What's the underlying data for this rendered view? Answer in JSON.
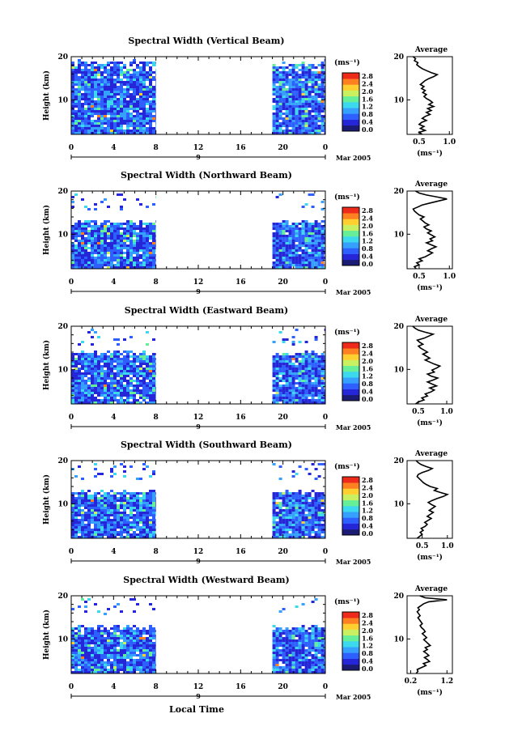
{
  "figure": {
    "xlabel": "Local Time",
    "date_label": "Mar 2005",
    "day_marker": "9",
    "height_label": "Height (km)",
    "colorbar_unit": "(ms⁻¹)",
    "average_title": "Average",
    "average_unit": "(ms⁻¹)"
  },
  "colors": {
    "colormap": [
      "#1b1b73",
      "#2626d9",
      "#2e5fff",
      "#36a0ff",
      "#3bd8ee",
      "#66ee99",
      "#c8f060",
      "#ffd030",
      "#ff8020",
      "#ee2a1a"
    ]
  },
  "chart_data": [
    {
      "type": "heatmap",
      "title": "Spectral Width (Vertical Beam)",
      "x_ticks": [
        "0",
        "4",
        "8",
        "12",
        "16",
        "20",
        "0"
      ],
      "y_ticks": [
        "20",
        "10"
      ],
      "colorbar_ticks": [
        "2.8",
        "2.4",
        "2.0",
        "1.6",
        "1.2",
        "0.8",
        "0.4",
        "0.0"
      ],
      "average": {
        "x_ticks": [
          "0.5",
          "1.0"
        ],
        "xlim": [
          0.3,
          1.05
        ],
        "y_ticks": [
          "20",
          "10"
        ],
        "ylim": [
          2,
          20
        ],
        "profile": [
          0.55,
          0.5,
          0.6,
          0.52,
          0.58,
          0.5,
          0.54,
          0.62,
          0.55,
          0.6,
          0.68,
          0.62,
          0.7,
          0.64,
          0.74,
          0.66,
          0.72,
          0.68,
          0.62,
          0.58,
          0.62,
          0.56,
          0.6,
          0.54,
          0.58,
          0.52,
          0.56,
          0.6,
          0.66,
          0.74,
          0.8,
          0.7,
          0.62,
          0.55,
          0.5,
          0.46,
          0.48,
          0.42,
          0.44,
          0.4
        ]
      },
      "data_extent": {
        "segments": [
          [
            0,
            8
          ],
          [
            19,
            24
          ]
        ],
        "max_height": 19
      }
    },
    {
      "type": "heatmap",
      "title": "Spectral Width (Northward Beam)",
      "x_ticks": [
        "0",
        "4",
        "8",
        "12",
        "16",
        "20",
        "0"
      ],
      "y_ticks": [
        "20",
        "10"
      ],
      "colorbar_ticks": [
        "2.8",
        "2.4",
        "2.0",
        "1.6",
        "1.2",
        "0.8",
        "0.4",
        "0.0"
      ],
      "average": {
        "x_ticks": [
          "0.5",
          "1.0"
        ],
        "xlim": [
          0.3,
          1.05
        ],
        "y_ticks": [
          "20",
          "10"
        ],
        "ylim": [
          2,
          20
        ],
        "profile": [
          0.45,
          0.42,
          0.5,
          0.46,
          0.55,
          0.5,
          0.6,
          0.66,
          0.72,
          0.64,
          0.7,
          0.78,
          0.7,
          0.62,
          0.72,
          0.68,
          0.76,
          0.7,
          0.64,
          0.7,
          0.62,
          0.58,
          0.66,
          0.6,
          0.56,
          0.52,
          0.58,
          0.5,
          0.46,
          0.42,
          0.4,
          0.48,
          0.55,
          0.68,
          0.82,
          0.96,
          0.8,
          0.62,
          0.5,
          0.44
        ]
      },
      "data_extent": {
        "segments": [
          [
            0,
            8
          ],
          [
            19,
            24
          ]
        ],
        "max_height": 13
      }
    },
    {
      "type": "heatmap",
      "title": "Spectral Width (Eastward Beam)",
      "x_ticks": [
        "0",
        "4",
        "8",
        "12",
        "16",
        "20",
        "0"
      ],
      "y_ticks": [
        "20",
        "10"
      ],
      "colorbar_ticks": [
        "2.8",
        "2.4",
        "2.0",
        "1.6",
        "1.2",
        "0.8",
        "0.4",
        "0.0"
      ],
      "average": {
        "x_ticks": [
          "0.5",
          "1.0"
        ],
        "xlim": [
          0.3,
          1.1
        ],
        "y_ticks": [
          "20",
          "10"
        ],
        "ylim": [
          2,
          20
        ],
        "profile": [
          0.45,
          0.5,
          0.6,
          0.56,
          0.66,
          0.62,
          0.72,
          0.78,
          0.7,
          0.82,
          0.74,
          0.66,
          0.76,
          0.84,
          0.72,
          0.66,
          0.78,
          0.74,
          0.82,
          0.88,
          0.78,
          0.7,
          0.62,
          0.7,
          0.64,
          0.58,
          0.66,
          0.6,
          0.54,
          0.5,
          0.58,
          0.52,
          0.48,
          0.6,
          0.68,
          0.76,
          0.62,
          0.5,
          0.44,
          0.4
        ]
      },
      "data_extent": {
        "segments": [
          [
            0,
            8
          ],
          [
            19,
            24
          ]
        ],
        "max_height": 14
      }
    },
    {
      "type": "heatmap",
      "title": "Spectral Width (Southward Beam)",
      "x_ticks": [
        "0",
        "4",
        "8",
        "12",
        "16",
        "20",
        "0"
      ],
      "y_ticks": [
        "20",
        "10"
      ],
      "colorbar_ticks": [
        "2.8",
        "2.4",
        "2.0",
        "1.6",
        "1.2",
        "0.8",
        "0.4",
        "0.0"
      ],
      "average": {
        "x_ticks": [
          "0.5",
          "1.0"
        ],
        "xlim": [
          0.2,
          1.1
        ],
        "y_ticks": [
          "20",
          "10"
        ],
        "ylim": [
          2,
          20
        ],
        "profile": [
          0.4,
          0.45,
          0.5,
          0.46,
          0.52,
          0.48,
          0.56,
          0.6,
          0.55,
          0.62,
          0.68,
          0.6,
          0.66,
          0.72,
          0.64,
          0.7,
          0.76,
          0.68,
          0.62,
          0.7,
          0.8,
          0.92,
          1.0,
          0.86,
          0.74,
          0.8,
          0.66,
          0.58,
          0.52,
          0.48,
          0.44,
          0.4,
          0.42,
          0.5,
          0.62,
          0.7,
          0.58,
          0.48,
          0.42,
          0.38
        ]
      },
      "data_extent": {
        "segments": [
          [
            0,
            8
          ],
          [
            19,
            24
          ]
        ],
        "max_height": 13
      }
    },
    {
      "type": "heatmap",
      "title": "Spectral Width (Westward Beam)",
      "x_ticks": [
        "0",
        "4",
        "8",
        "12",
        "16",
        "20",
        "0"
      ],
      "y_ticks": [
        "20",
        "10"
      ],
      "colorbar_ticks": [
        "2.8",
        "2.4",
        "2.0",
        "1.6",
        "1.2",
        "0.8",
        "0.4",
        "0.0"
      ],
      "average": {
        "x_ticks": [
          "0.2",
          "1.2"
        ],
        "xlim": [
          0.1,
          1.35
        ],
        "y_ticks": [
          "20",
          "10"
        ],
        "ylim": [
          2,
          20
        ],
        "profile": [
          0.35,
          0.4,
          0.38,
          0.5,
          0.62,
          0.55,
          0.72,
          0.66,
          0.58,
          0.7,
          0.64,
          0.56,
          0.66,
          0.6,
          0.74,
          0.68,
          0.62,
          0.56,
          0.64,
          0.58,
          0.52,
          0.6,
          0.56,
          0.5,
          0.46,
          0.52,
          0.48,
          0.44,
          0.4,
          0.46,
          0.42,
          0.38,
          0.44,
          0.4,
          0.48,
          0.56,
          0.7,
          1.2,
          0.6,
          0.45
        ]
      },
      "data_extent": {
        "segments": [
          [
            0,
            8
          ],
          [
            19,
            24
          ]
        ],
        "max_height": 13
      }
    }
  ]
}
